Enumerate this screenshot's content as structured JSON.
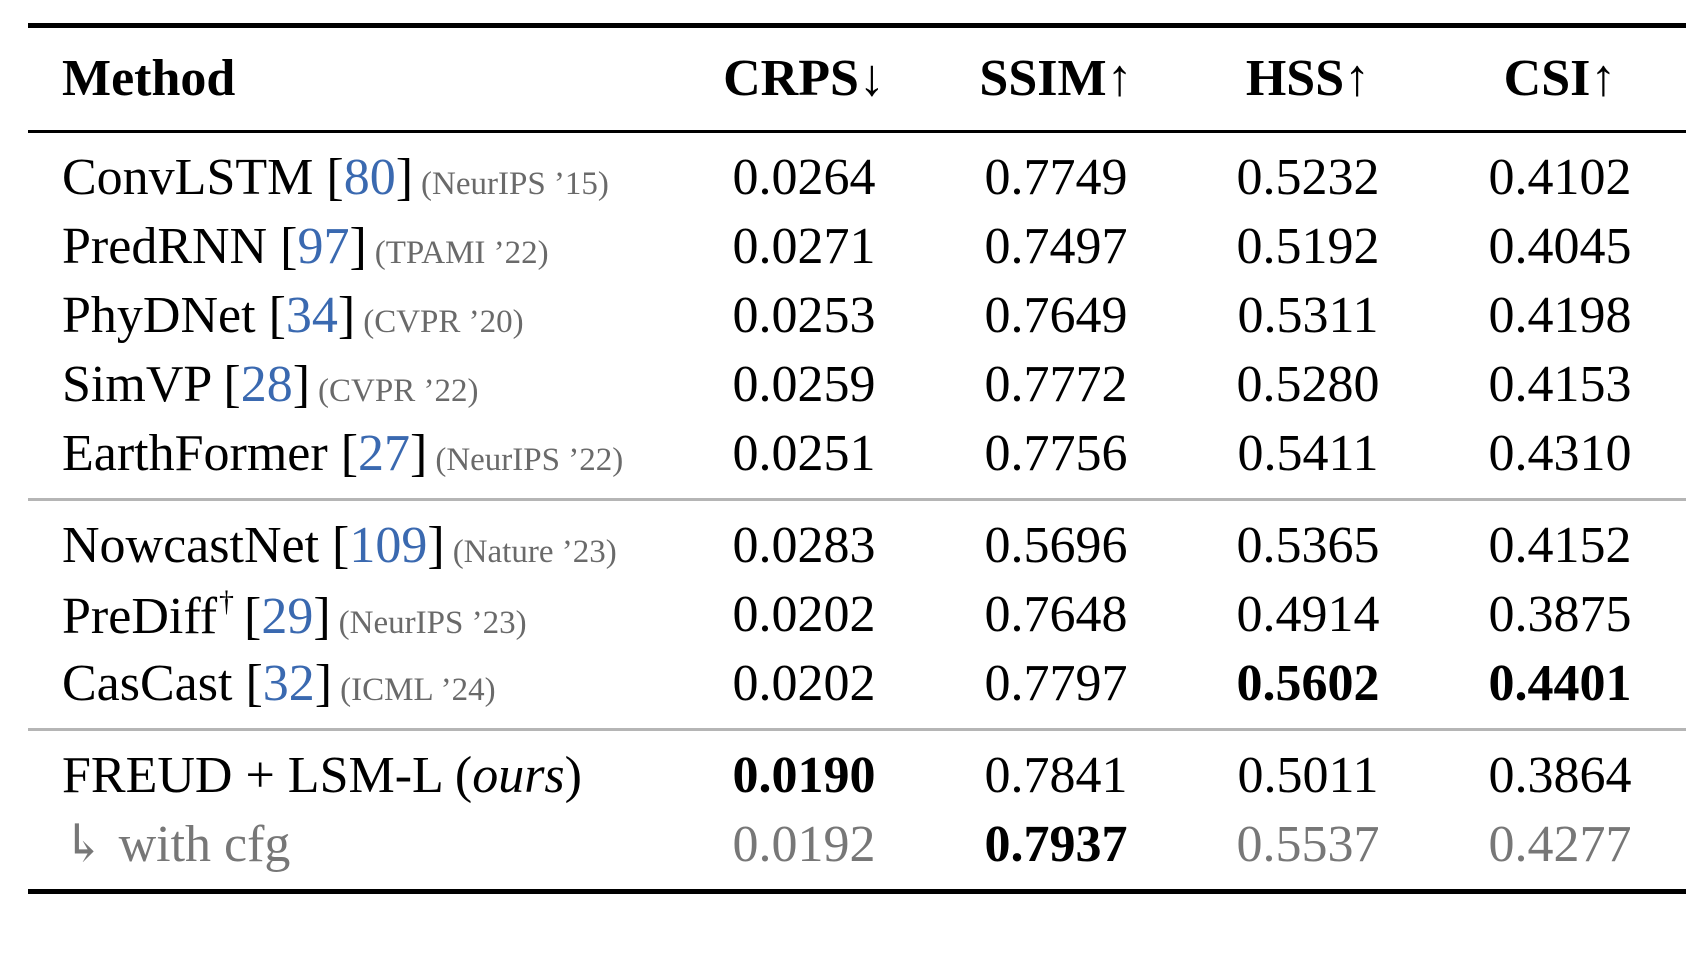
{
  "header": {
    "method": "Method",
    "metrics": [
      "CRPS↓",
      "SSIM↑",
      "HSS↑",
      "CSI↑"
    ]
  },
  "groups": [
    {
      "rows": [
        {
          "name": "ConvLSTM",
          "ref_open": "[",
          "ref": "80",
          "ref_close": "]",
          "venue": "(NeurIPS ’15)",
          "values": [
            "0.0264",
            "0.7749",
            "0.5232",
            "0.4102"
          ]
        },
        {
          "name": "PredRNN",
          "ref_open": "[",
          "ref": "97",
          "ref_close": "]",
          "venue": "(TPAMI ’22)",
          "values": [
            "0.0271",
            "0.7497",
            "0.5192",
            "0.4045"
          ]
        },
        {
          "name": "PhyDNet",
          "ref_open": "[",
          "ref": "34",
          "ref_close": "]",
          "venue": "(CVPR ’20)",
          "values": [
            "0.0253",
            "0.7649",
            "0.5311",
            "0.4198"
          ]
        },
        {
          "name": "SimVP",
          "ref_open": "[",
          "ref": "28",
          "ref_close": "]",
          "venue": "(CVPR ’22)",
          "values": [
            "0.0259",
            "0.7772",
            "0.5280",
            "0.4153"
          ]
        },
        {
          "name": "EarthFormer",
          "ref_open": "[",
          "ref": "27",
          "ref_close": "]",
          "venue": "(NeurIPS ’22)",
          "values": [
            "0.0251",
            "0.7756",
            "0.5411",
            "0.4310"
          ]
        }
      ]
    },
    {
      "rows": [
        {
          "name": "NowcastNet",
          "ref_open": "[",
          "ref": "109",
          "ref_close": "]",
          "venue": "(Nature ’23)",
          "values": [
            "0.0283",
            "0.5696",
            "0.5365",
            "0.4152"
          ]
        },
        {
          "name": "PreDiff",
          "dagger": "†",
          "ref_open": "[",
          "ref": "29",
          "ref_close": "]",
          "venue": "(NeurIPS ’23)",
          "values": [
            "0.0202",
            "0.7648",
            "0.4914",
            "0.3875"
          ]
        },
        {
          "name": "CasCast",
          "ref_open": "[",
          "ref": "32",
          "ref_close": "]",
          "venue": "(ICML ’24)",
          "values": [
            "0.0202",
            "0.7797",
            "0.5602",
            "0.4401"
          ]
        }
      ]
    },
    {
      "rows": [
        {
          "name_prefix": "FREUD + LSM-L (",
          "name_italic": "ours",
          "name_suffix": ")",
          "values": [
            "0.0190",
            "0.7841",
            "0.5011",
            "0.3864"
          ]
        },
        {
          "name": "↳ with cfg",
          "values": [
            "0.0192",
            "0.7937",
            "0.5537",
            "0.4277"
          ]
        }
      ]
    }
  ]
}
